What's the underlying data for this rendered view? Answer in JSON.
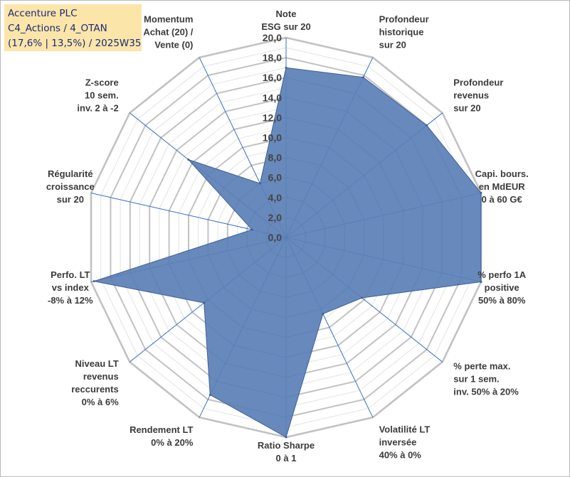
{
  "title_box": {
    "line1": "Accenture PLC",
    "line2": "C4_Actions / 4_OTAN",
    "line3": "(17,6% | 13,5%) / 2025W35"
  },
  "chart_data": {
    "type": "radar",
    "range": [
      0,
      20
    ],
    "tick_step": 2,
    "tick_labels": [
      "0,0",
      "2,0",
      "4,0",
      "6,0",
      "8,0",
      "10,0",
      "12,0",
      "14,0",
      "16,0",
      "18,0",
      "20,0"
    ],
    "axes": [
      {
        "label": [
          "Note",
          "ESG sur 20"
        ],
        "value": 17.0
      },
      {
        "label": [
          "Profondeur",
          "historique",
          "sur 20"
        ],
        "value": 17.8
      },
      {
        "label": [
          "Profondeur",
          "revenus",
          "sur 20"
        ],
        "value": 18.0
      },
      {
        "label": [
          "Capi. bours.",
          "en MdEUR",
          "0 à 60 G€"
        ],
        "value": 20.0
      },
      {
        "label": [
          "% perfo 1A",
          "positive",
          "50% à 80%"
        ],
        "value": 20.0
      },
      {
        "label": [
          "% perte max.",
          "sur 1 sem.",
          "inv. 50% à 20%"
        ],
        "value": 9.7
      },
      {
        "label": [
          "Volatilité LT",
          "inversée",
          "40% à 0%"
        ],
        "value": 8.5
      },
      {
        "label": [
          "Ratio Sharpe",
          "0 à 1"
        ],
        "value": 20.0
      },
      {
        "label": [
          "Rendement LT",
          "0% à 20%"
        ],
        "value": 17.5
      },
      {
        "label": [
          "Niveau LT",
          "revenus",
          "reccurents",
          "0% à 6%"
        ],
        "value": 10.5
      },
      {
        "label": [
          "Perfo. LT",
          "vs index",
          "-8% à 12%"
        ],
        "value": 19.7
      },
      {
        "label": [
          "Régularité",
          "croissance",
          "sur 20"
        ],
        "value": 3.5
      },
      {
        "label": [
          "Z-score",
          "10 sem.",
          "inv. 2 à -2"
        ],
        "value": 12.5
      },
      {
        "label": [
          "Momentum",
          "Achat (20) /",
          "Vente (0)"
        ],
        "value": 6.0
      }
    ],
    "colors": {
      "fill": "#5b7fb5",
      "stroke": "#3c5f99",
      "spoke": "#3a6ec8",
      "major_grid": "#c2c2c2",
      "minor_grid": "#e3e3e3"
    }
  }
}
